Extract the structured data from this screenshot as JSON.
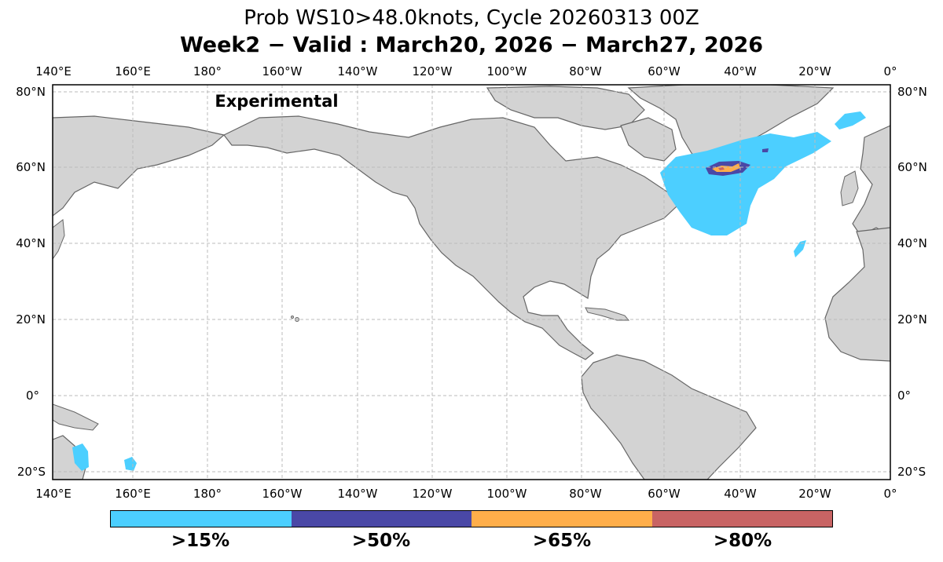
{
  "title": "Prob WS10>48.0knots, Cycle 20260313 00Z",
  "subtitle": "Week2 − Valid : March20, 2026 − March27, 2026",
  "annotation": "Experimental",
  "lon_ticks": [
    "140°E",
    "160°E",
    "180°",
    "160°W",
    "140°W",
    "120°W",
    "100°W",
    "80°W",
    "60°W",
    "40°W",
    "20°W",
    "0°"
  ],
  "lat_ticks": [
    "80°N",
    "60°N",
    "40°N",
    "20°N",
    "0°",
    "20°S"
  ],
  "colors": {
    "land": "#d3d3d3",
    "coast": "#666666",
    "grid": "#bbbbbb",
    "p15": "#4ccfff",
    "p50": "#4a48a6",
    "p65": "#ffae4a",
    "p80": "#c86464"
  },
  "legend": [
    {
      "label": ">15%",
      "color": "#4ccfff"
    },
    {
      "label": ">50%",
      "color": "#4a48a6"
    },
    {
      "label": ">65%",
      "color": "#ffae4a"
    },
    {
      "label": ">80%",
      "color": "#c86464"
    }
  ]
}
